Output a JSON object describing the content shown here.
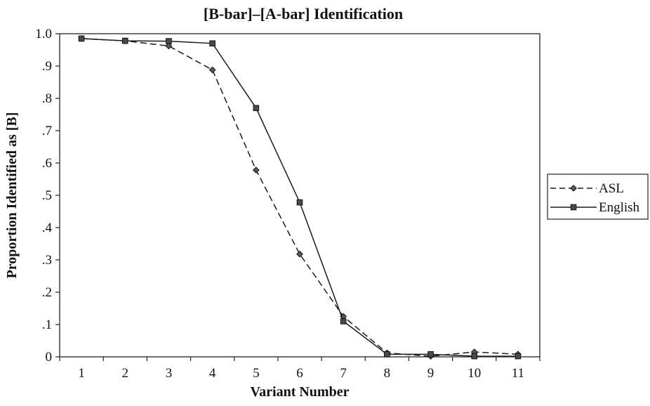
{
  "chart_data": {
    "type": "line",
    "title": "[B-bar]–[A-bar] Identification",
    "xlabel": "Variant Number",
    "ylabel": "Proportion Identified as [B]",
    "x": [
      1,
      2,
      3,
      4,
      5,
      6,
      7,
      8,
      9,
      10,
      11
    ],
    "xlim": [
      0.5,
      11.5
    ],
    "ylim": [
      0,
      1
    ],
    "y_ticks": [
      {
        "value": 0,
        "label": "0"
      },
      {
        "value": 0.1,
        "label": ".1"
      },
      {
        "value": 0.2,
        "label": ".2"
      },
      {
        "value": 0.3,
        "label": ".3"
      },
      {
        "value": 0.4,
        "label": ".4"
      },
      {
        "value": 0.5,
        "label": ".5"
      },
      {
        "value": 0.6,
        "label": ".6"
      },
      {
        "value": 0.7,
        "label": ".7"
      },
      {
        "value": 0.8,
        "label": ".8"
      },
      {
        "value": 0.9,
        "label": ".9"
      },
      {
        "value": 1.0,
        "label": "1.0"
      }
    ],
    "x_tick_labels": [
      "1",
      "2",
      "3",
      "4",
      "5",
      "6",
      "7",
      "8",
      "9",
      "10",
      "11"
    ],
    "grid": false,
    "legend_position": "right",
    "series": [
      {
        "name": "ASL",
        "line_style": "dashed",
        "marker": "diamond",
        "values": [
          0.985,
          0.978,
          0.962,
          0.888,
          0.578,
          0.318,
          0.125,
          0.012,
          0.002,
          0.015,
          0.008
        ]
      },
      {
        "name": "English",
        "line_style": "solid",
        "marker": "square",
        "values": [
          0.985,
          0.978,
          0.977,
          0.97,
          0.77,
          0.478,
          0.11,
          0.008,
          0.008,
          0.002,
          0.002
        ]
      }
    ]
  }
}
